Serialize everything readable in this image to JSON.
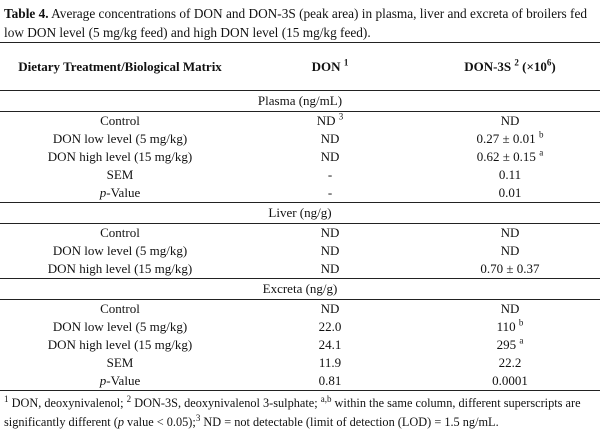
{
  "caption": {
    "label": "Table 4.",
    "text": " Average concentrations of DON and DON-3S (peak area) in plasma, liver and excreta of broilers fed low DON level (5 mg/kg feed) and high DON level (15 mg/kg feed)."
  },
  "header": [
    "Dietary Treatment/Biological Matrix",
    [
      "DON ",
      {
        "sup": "1"
      }
    ],
    [
      "DON-3S ",
      {
        "sup": "2"
      },
      " (×10",
      {
        "sup": "6"
      },
      ")"
    ]
  ],
  "sections": [
    {
      "title": "Plasma (ng/mL)",
      "rows": [
        [
          "Control",
          [
            "ND ",
            {
              "sup": "3"
            }
          ],
          "ND"
        ],
        [
          "DON low level (5 mg/kg)",
          "ND",
          [
            "0.27 ± 0.01 ",
            {
              "sup": "b"
            }
          ]
        ],
        [
          "DON high level (15 mg/kg)",
          "ND",
          [
            "0.62 ± 0.15 ",
            {
              "sup": "a"
            }
          ]
        ],
        [
          "SEM",
          "-",
          "0.11"
        ],
        [
          [
            {
              "i": "p"
            },
            "-Value"
          ],
          "-",
          "0.01"
        ]
      ]
    },
    {
      "title": "Liver (ng/g)",
      "rows": [
        [
          "Control",
          "ND",
          "ND"
        ],
        [
          "DON low level (5 mg/kg)",
          "ND",
          "ND"
        ],
        [
          "DON high level (15 mg/kg)",
          "ND",
          "0.70 ± 0.37"
        ]
      ]
    },
    {
      "title": "Excreta (ng/g)",
      "rows": [
        [
          "Control",
          "ND",
          "ND"
        ],
        [
          "DON low level (5 mg/kg)",
          "22.0",
          [
            "110 ",
            {
              "sup": "b"
            }
          ]
        ],
        [
          "DON high level (15 mg/kg)",
          "24.1",
          [
            "295 ",
            {
              "sup": "a"
            }
          ]
        ],
        [
          "SEM",
          "11.9",
          "22.2"
        ],
        [
          [
            {
              "i": "p"
            },
            "-Value"
          ],
          "0.81",
          "0.0001"
        ]
      ]
    }
  ],
  "footnote": [
    {
      "sup": "1"
    },
    " DON, deoxynivalenol; ",
    {
      "sup": "2"
    },
    " DON-3S, deoxynivalenol 3-sulphate; ",
    {
      "sup": "a,b"
    },
    " within the same column, different superscripts are significantly different (",
    {
      "i": "p"
    },
    " value < 0.05);",
    {
      "sup": "3"
    },
    " ND = not detectable (limit of detection (LOD) = 1.5 ng/mL."
  ]
}
